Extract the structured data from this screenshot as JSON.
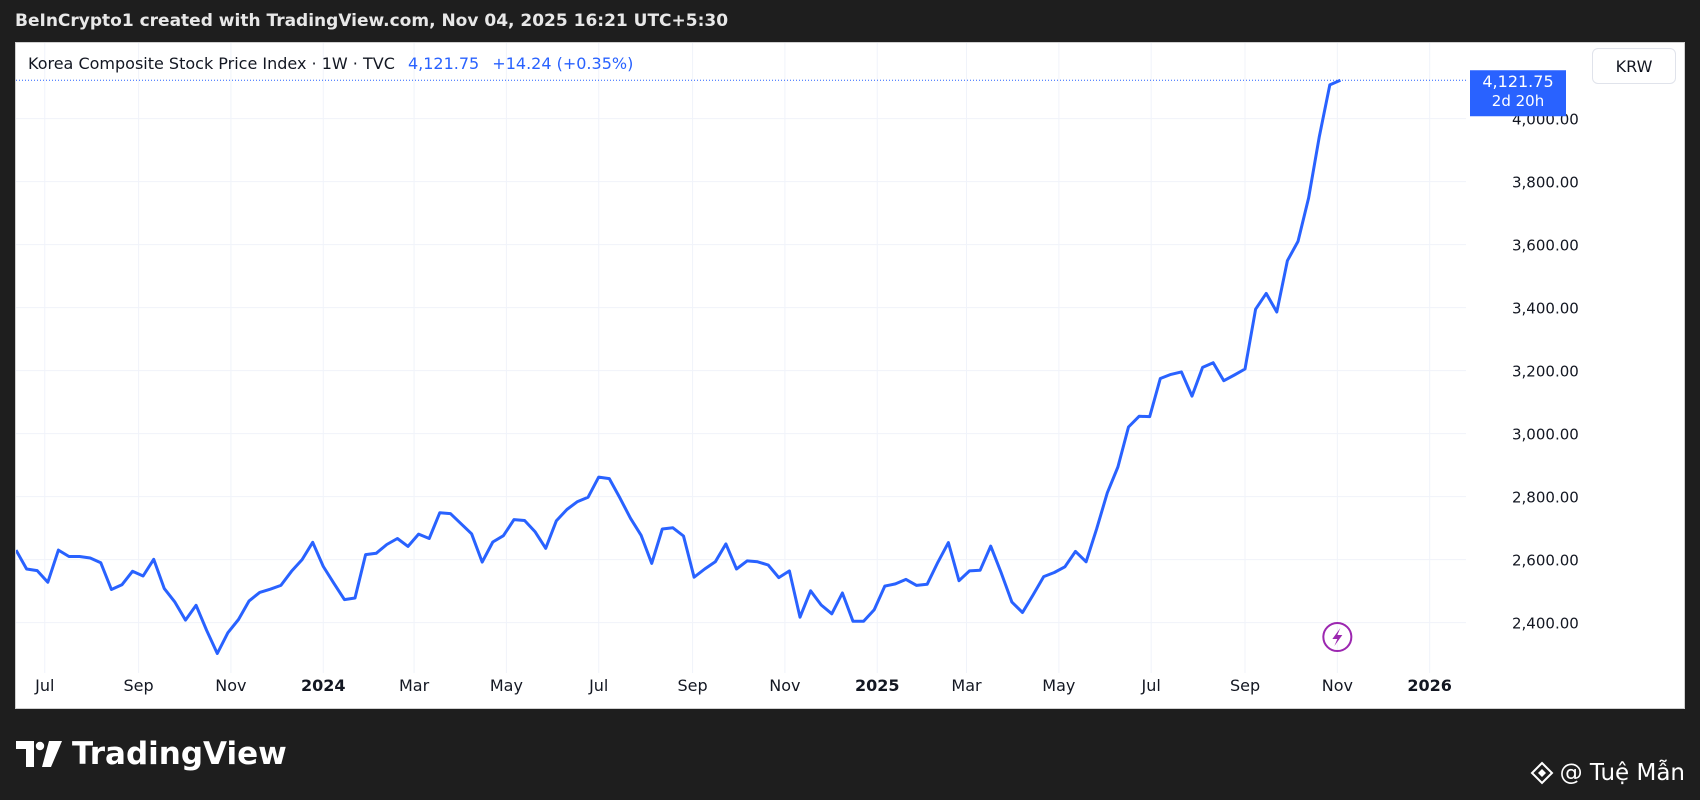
{
  "header": {
    "caption": "BeInCrypto1 created with TradingView.com, Nov 04, 2025 16:21 UTC+5:30"
  },
  "legend": {
    "symbol": "Korea Composite Stock Price Index · 1W · TVC",
    "last": "4,121.75",
    "change": "+14.24 (+0.35%)"
  },
  "currency_button": "KRW",
  "price_tag": {
    "price": "4,121.75",
    "countdown": "2d 20h"
  },
  "footer": {
    "brand": "TradingView",
    "watermark": "@ Tuệ Mẫn"
  },
  "colors": {
    "line": "#2962ff",
    "grid": "#f0f3fa",
    "axis_text": "#131722",
    "lightning": "#9c27b0"
  },
  "icons": [
    "tradingview-logo-icon",
    "lightning-icon",
    "binance-icon"
  ],
  "chart_data": {
    "type": "line",
    "title": "Korea Composite Stock Price Index",
    "timeframe": "1W",
    "xlabel": "",
    "ylabel": "",
    "ylim": [
      2240,
      4240
    ],
    "y_ticks": [
      "2,400.00",
      "2,600.00",
      "2,800.00",
      "3,000.00",
      "3,200.00",
      "3,400.00",
      "3,600.00",
      "3,800.00",
      "4,000.00"
    ],
    "y_tick_values": [
      2400,
      2600,
      2800,
      3000,
      3200,
      3400,
      3600,
      3800,
      4000
    ],
    "x_ticks": [
      {
        "label": "Jul",
        "date": "2023-07-01",
        "bold": false
      },
      {
        "label": "Sep",
        "date": "2023-09-01",
        "bold": false
      },
      {
        "label": "Nov",
        "date": "2023-11-01",
        "bold": false
      },
      {
        "label": "2024",
        "date": "2024-01-01",
        "bold": true
      },
      {
        "label": "Mar",
        "date": "2024-03-01",
        "bold": false
      },
      {
        "label": "May",
        "date": "2024-05-01",
        "bold": false
      },
      {
        "label": "Jul",
        "date": "2024-07-01",
        "bold": false
      },
      {
        "label": "Sep",
        "date": "2024-09-01",
        "bold": false
      },
      {
        "label": "Nov",
        "date": "2024-11-01",
        "bold": false
      },
      {
        "label": "2025",
        "date": "2025-01-01",
        "bold": true
      },
      {
        "label": "Mar",
        "date": "2025-03-01",
        "bold": false
      },
      {
        "label": "May",
        "date": "2025-05-01",
        "bold": false
      },
      {
        "label": "Jul",
        "date": "2025-07-01",
        "bold": false
      },
      {
        "label": "Sep",
        "date": "2025-09-01",
        "bold": false
      },
      {
        "label": "Nov",
        "date": "2025-11-01",
        "bold": false
      },
      {
        "label": "2026",
        "date": "2026-01-01",
        "bold": true
      }
    ],
    "x_range": [
      "2023-06-12",
      "2026-01-25"
    ],
    "series": [
      {
        "points": [
          [
            "2023-06-12",
            2630
          ],
          [
            "2023-06-19",
            2570
          ],
          [
            "2023-06-26",
            2565
          ],
          [
            "2023-07-03",
            2528
          ],
          [
            "2023-07-10",
            2630
          ],
          [
            "2023-07-17",
            2610
          ],
          [
            "2023-07-24",
            2610
          ],
          [
            "2023-07-31",
            2605
          ],
          [
            "2023-08-07",
            2590
          ],
          [
            "2023-08-14",
            2505
          ],
          [
            "2023-08-21",
            2520
          ],
          [
            "2023-08-28",
            2563
          ],
          [
            "2023-09-04",
            2548
          ],
          [
            "2023-09-11",
            2601
          ],
          [
            "2023-09-18",
            2508
          ],
          [
            "2023-09-25",
            2465
          ],
          [
            "2023-10-02",
            2408
          ],
          [
            "2023-10-09",
            2455
          ],
          [
            "2023-10-16",
            2375
          ],
          [
            "2023-10-23",
            2302
          ],
          [
            "2023-10-30",
            2368
          ],
          [
            "2023-11-06",
            2410
          ],
          [
            "2023-11-13",
            2469
          ],
          [
            "2023-11-20",
            2496
          ],
          [
            "2023-11-27",
            2506
          ],
          [
            "2023-12-04",
            2518
          ],
          [
            "2023-12-11",
            2563
          ],
          [
            "2023-12-18",
            2600
          ],
          [
            "2023-12-25",
            2655
          ],
          [
            "2024-01-01",
            2578
          ],
          [
            "2024-01-08",
            2525
          ],
          [
            "2024-01-15",
            2473
          ],
          [
            "2024-01-22",
            2478
          ],
          [
            "2024-01-29",
            2616
          ],
          [
            "2024-02-05",
            2620
          ],
          [
            "2024-02-12",
            2648
          ],
          [
            "2024-02-19",
            2667
          ],
          [
            "2024-02-26",
            2642
          ],
          [
            "2024-03-04",
            2681
          ],
          [
            "2024-03-11",
            2667
          ],
          [
            "2024-03-18",
            2749
          ],
          [
            "2024-03-25",
            2746
          ],
          [
            "2024-04-01",
            2714
          ],
          [
            "2024-04-08",
            2682
          ],
          [
            "2024-04-15",
            2592
          ],
          [
            "2024-04-22",
            2656
          ],
          [
            "2024-04-29",
            2676
          ],
          [
            "2024-05-06",
            2727
          ],
          [
            "2024-05-13",
            2724
          ],
          [
            "2024-05-20",
            2688
          ],
          [
            "2024-05-27",
            2636
          ],
          [
            "2024-06-03",
            2723
          ],
          [
            "2024-06-10",
            2759
          ],
          [
            "2024-06-17",
            2784
          ],
          [
            "2024-06-24",
            2798
          ],
          [
            "2024-07-01",
            2862
          ],
          [
            "2024-07-08",
            2857
          ],
          [
            "2024-07-15",
            2796
          ],
          [
            "2024-07-22",
            2731
          ],
          [
            "2024-07-29",
            2677
          ],
          [
            "2024-08-05",
            2588
          ],
          [
            "2024-08-12",
            2697
          ],
          [
            "2024-08-19",
            2701
          ],
          [
            "2024-08-26",
            2675
          ],
          [
            "2024-09-02",
            2544
          ],
          [
            "2024-09-09",
            2570
          ],
          [
            "2024-09-16",
            2593
          ],
          [
            "2024-09-23",
            2650
          ],
          [
            "2024-09-30",
            2570
          ],
          [
            "2024-10-07",
            2596
          ],
          [
            "2024-10-14",
            2593
          ],
          [
            "2024-10-21",
            2583
          ],
          [
            "2024-10-28",
            2543
          ],
          [
            "2024-11-04",
            2564
          ],
          [
            "2024-11-11",
            2417
          ],
          [
            "2024-11-18",
            2501
          ],
          [
            "2024-11-25",
            2456
          ],
          [
            "2024-12-02",
            2428
          ],
          [
            "2024-12-09",
            2494
          ],
          [
            "2024-12-16",
            2404
          ],
          [
            "2024-12-23",
            2404
          ],
          [
            "2024-12-30",
            2441
          ],
          [
            "2025-01-06",
            2516
          ],
          [
            "2025-01-13",
            2523
          ],
          [
            "2025-01-20",
            2537
          ],
          [
            "2025-01-27",
            2518
          ],
          [
            "2025-02-03",
            2522
          ],
          [
            "2025-02-10",
            2591
          ],
          [
            "2025-02-17",
            2654
          ],
          [
            "2025-02-24",
            2533
          ],
          [
            "2025-03-03",
            2564
          ],
          [
            "2025-03-10",
            2566
          ],
          [
            "2025-03-17",
            2643
          ],
          [
            "2025-03-24",
            2557
          ],
          [
            "2025-03-31",
            2465
          ],
          [
            "2025-04-07",
            2432
          ],
          [
            "2025-04-14",
            2488
          ],
          [
            "2025-04-21",
            2546
          ],
          [
            "2025-04-28",
            2559
          ],
          [
            "2025-05-05",
            2577
          ],
          [
            "2025-05-12",
            2626
          ],
          [
            "2025-05-19",
            2593
          ],
          [
            "2025-05-26",
            2698
          ],
          [
            "2025-06-02",
            2812
          ],
          [
            "2025-06-09",
            2894
          ],
          [
            "2025-06-16",
            3021
          ],
          [
            "2025-06-23",
            3055
          ],
          [
            "2025-06-30",
            3054
          ],
          [
            "2025-07-07",
            3175
          ],
          [
            "2025-07-14",
            3188
          ],
          [
            "2025-07-21",
            3196
          ],
          [
            "2025-07-28",
            3119
          ],
          [
            "2025-08-04",
            3210
          ],
          [
            "2025-08-11",
            3225
          ],
          [
            "2025-08-18",
            3168
          ],
          [
            "2025-08-25",
            3186
          ],
          [
            "2025-09-01",
            3205
          ],
          [
            "2025-09-08",
            3395
          ],
          [
            "2025-09-15",
            3445
          ],
          [
            "2025-09-22",
            3386
          ],
          [
            "2025-09-29",
            3549
          ],
          [
            "2025-10-06",
            3610
          ],
          [
            "2025-10-13",
            3748
          ],
          [
            "2025-10-20",
            3941
          ],
          [
            "2025-10-27",
            4107
          ],
          [
            "2025-11-03",
            4121.75
          ]
        ]
      }
    ],
    "last_value": 4121.75,
    "grid": true,
    "legend_position": "top-left",
    "price_scale_position": "right"
  }
}
